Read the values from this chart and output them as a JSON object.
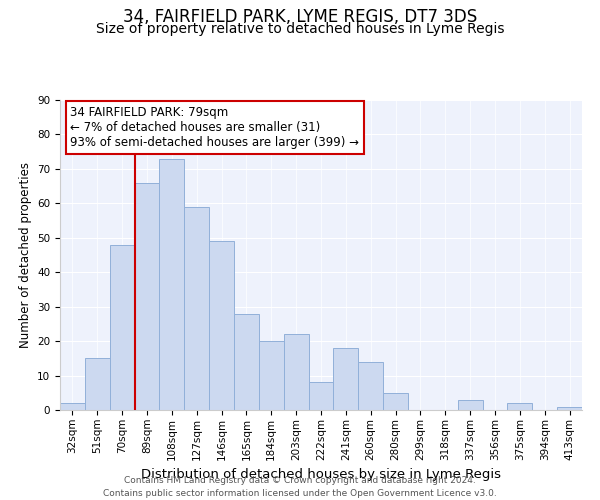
{
  "title": "34, FAIRFIELD PARK, LYME REGIS, DT7 3DS",
  "subtitle": "Size of property relative to detached houses in Lyme Regis",
  "xlabel": "Distribution of detached houses by size in Lyme Regis",
  "ylabel": "Number of detached properties",
  "bar_labels": [
    "32sqm",
    "51sqm",
    "70sqm",
    "89sqm",
    "108sqm",
    "127sqm",
    "146sqm",
    "165sqm",
    "184sqm",
    "203sqm",
    "222sqm",
    "241sqm",
    "260sqm",
    "280sqm",
    "299sqm",
    "318sqm",
    "337sqm",
    "356sqm",
    "375sqm",
    "394sqm",
    "413sqm"
  ],
  "bar_values": [
    2,
    15,
    48,
    66,
    73,
    59,
    49,
    28,
    20,
    22,
    8,
    18,
    14,
    5,
    0,
    0,
    3,
    0,
    2,
    0,
    1
  ],
  "bar_color": "#ccd9f0",
  "bar_edge_color": "#91b0d9",
  "ylim": [
    0,
    90
  ],
  "yticks": [
    0,
    10,
    20,
    30,
    40,
    50,
    60,
    70,
    80,
    90
  ],
  "vline_x_idx": 2,
  "vline_color": "#cc0000",
  "annotation_text_line1": "34 FAIRFIELD PARK: 79sqm",
  "annotation_text_line2": "← 7% of detached houses are smaller (31)",
  "annotation_text_line3": "93% of semi-detached houses are larger (399) →",
  "annotation_box_color": "#ffffff",
  "annotation_box_edge_color": "#cc0000",
  "footer_line1": "Contains HM Land Registry data © Crown copyright and database right 2024.",
  "footer_line2": "Contains public sector information licensed under the Open Government Licence v3.0.",
  "title_fontsize": 12,
  "subtitle_fontsize": 10,
  "xlabel_fontsize": 9.5,
  "ylabel_fontsize": 8.5,
  "tick_fontsize": 7.5,
  "footer_fontsize": 6.5,
  "annotation_fontsize": 8.5,
  "background_color": "#eef2fc"
}
